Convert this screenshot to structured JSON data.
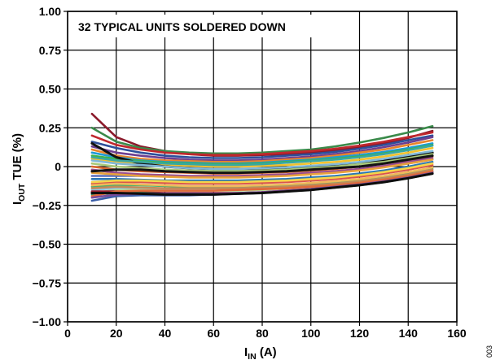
{
  "chart_data": {
    "type": "line",
    "annotation": "32 TYPICAL UNITS SOLDERED DOWN",
    "xlabel": {
      "main": "I",
      "sub": "IN",
      "unit": " (A)"
    },
    "ylabel": {
      "main": "I",
      "sub": "OUT",
      "rest": " TUE (%)"
    },
    "figure_id": "003",
    "xlim": [
      0,
      160
    ],
    "ylim": [
      -1.0,
      1.0
    ],
    "grid": true,
    "xticks": [
      0,
      20,
      40,
      60,
      80,
      100,
      120,
      140,
      160
    ],
    "xtick_labels": [
      "0",
      "20",
      "40",
      "60",
      "80",
      "100",
      "120",
      "140",
      "160"
    ],
    "yticks": [
      1.0,
      0.75,
      0.5,
      0.25,
      0,
      -0.25,
      -0.5,
      -0.75,
      -1.0
    ],
    "ytick_labels": [
      "1.00",
      "0.75",
      "0.50",
      "0.25",
      "0",
      "−0.25",
      "−0.50",
      "−0.75",
      "−1.00"
    ],
    "x": [
      10,
      20,
      30,
      40,
      50,
      60,
      70,
      80,
      90,
      100,
      110,
      120,
      130,
      140,
      150
    ],
    "series": [
      {
        "color": "#8b1a2b",
        "values": [
          0.34,
          0.19,
          0.13,
          0.1,
          0.08,
          0.07,
          0.07,
          0.075,
          0.08,
          0.09,
          0.105,
          0.125,
          0.15,
          0.185,
          0.23
        ]
      },
      {
        "color": "#3a8a4a",
        "values": [
          0.25,
          0.16,
          0.12,
          0.1,
          0.09,
          0.085,
          0.085,
          0.09,
          0.1,
          0.11,
          0.13,
          0.155,
          0.185,
          0.22,
          0.26
        ]
      },
      {
        "color": "#c0272d",
        "values": [
          0.2,
          0.14,
          0.11,
          0.09,
          0.08,
          0.075,
          0.075,
          0.08,
          0.09,
          0.1,
          0.115,
          0.135,
          0.16,
          0.19,
          0.22
        ]
      },
      {
        "color": "#2e4f9a",
        "values": [
          0.16,
          0.12,
          0.09,
          0.07,
          0.06,
          0.055,
          0.055,
          0.06,
          0.07,
          0.08,
          0.095,
          0.115,
          0.14,
          0.17,
          0.2
        ]
      },
      {
        "color": "#6d3f91",
        "values": [
          0.13,
          0.09,
          0.07,
          0.055,
          0.045,
          0.04,
          0.04,
          0.045,
          0.055,
          0.065,
          0.08,
          0.1,
          0.125,
          0.155,
          0.19
        ]
      },
      {
        "color": "#e8852b",
        "values": [
          0.11,
          0.07,
          0.05,
          0.04,
          0.035,
          0.03,
          0.03,
          0.035,
          0.045,
          0.055,
          0.07,
          0.09,
          0.11,
          0.14,
          0.17
        ]
      },
      {
        "color": "#1f9ad6",
        "values": [
          0.09,
          0.06,
          0.04,
          0.03,
          0.025,
          0.02,
          0.02,
          0.025,
          0.035,
          0.045,
          0.06,
          0.075,
          0.095,
          0.12,
          0.15
        ]
      },
      {
        "color": "#3cb54a",
        "values": [
          0.07,
          0.05,
          0.035,
          0.025,
          0.02,
          0.015,
          0.015,
          0.02,
          0.03,
          0.04,
          0.05,
          0.065,
          0.085,
          0.11,
          0.14
        ]
      },
      {
        "color": "#f2c12e",
        "values": [
          0.05,
          0.03,
          0.02,
          0.01,
          0.005,
          0.0,
          0.0,
          0.005,
          0.01,
          0.02,
          0.03,
          0.045,
          0.065,
          0.09,
          0.12
        ]
      },
      {
        "color": "#111111",
        "values": [
          0.15,
          0.06,
          0.02,
          0.0,
          -0.01,
          -0.015,
          -0.015,
          -0.015,
          -0.01,
          -0.005,
          0.005,
          0.02,
          0.04,
          0.065,
          0.09
        ]
      },
      {
        "color": "#7fb7d8",
        "values": [
          0.04,
          0.02,
          0.01,
          0.0,
          -0.01,
          -0.015,
          -0.015,
          -0.01,
          -0.005,
          0.005,
          0.015,
          0.03,
          0.05,
          0.075,
          0.1
        ]
      },
      {
        "color": "#a8c97a",
        "values": [
          0.02,
          0.0,
          -0.01,
          -0.02,
          -0.025,
          -0.03,
          -0.03,
          -0.025,
          -0.02,
          -0.01,
          0.0,
          0.015,
          0.03,
          0.055,
          0.08
        ]
      },
      {
        "color": "#d8642a",
        "values": [
          0.0,
          -0.02,
          -0.03,
          -0.035,
          -0.04,
          -0.045,
          -0.045,
          -0.04,
          -0.035,
          -0.025,
          -0.015,
          0.0,
          0.02,
          0.04,
          0.065
        ]
      },
      {
        "color": "#5a6dbb",
        "values": [
          -0.06,
          -0.06,
          -0.06,
          -0.06,
          -0.065,
          -0.065,
          -0.065,
          -0.06,
          -0.055,
          -0.045,
          -0.035,
          -0.02,
          0.0,
          0.02,
          0.045
        ]
      },
      {
        "color": "#9b4d8f",
        "values": [
          -0.02,
          -0.04,
          -0.05,
          -0.055,
          -0.06,
          -0.06,
          -0.06,
          -0.055,
          -0.05,
          -0.04,
          -0.03,
          -0.015,
          0.005,
          0.03,
          0.055
        ]
      },
      {
        "color": "#e9a23b",
        "values": [
          -0.04,
          -0.05,
          -0.06,
          -0.065,
          -0.07,
          -0.07,
          -0.07,
          -0.065,
          -0.06,
          -0.05,
          -0.04,
          -0.025,
          -0.005,
          0.02,
          0.045
        ]
      },
      {
        "color": "#141414",
        "values": [
          -0.03,
          -0.02,
          -0.02,
          -0.03,
          -0.035,
          -0.04,
          -0.04,
          -0.035,
          -0.03,
          -0.02,
          -0.01,
          0.0,
          0.02,
          0.045,
          0.07
        ]
      },
      {
        "color": "#2b77b5",
        "values": [
          -0.08,
          -0.08,
          -0.085,
          -0.09,
          -0.09,
          -0.09,
          -0.09,
          -0.085,
          -0.08,
          -0.07,
          -0.06,
          -0.045,
          -0.025,
          0.0,
          0.03
        ]
      },
      {
        "color": "#d9544f",
        "values": [
          -0.11,
          -0.1,
          -0.1,
          -0.105,
          -0.11,
          -0.11,
          -0.11,
          -0.105,
          -0.1,
          -0.09,
          -0.08,
          -0.065,
          -0.045,
          -0.02,
          0.01
        ]
      },
      {
        "color": "#4caf6d",
        "values": [
          -0.13,
          -0.12,
          -0.12,
          -0.125,
          -0.13,
          -0.13,
          -0.13,
          -0.125,
          -0.12,
          -0.11,
          -0.1,
          -0.085,
          -0.065,
          -0.04,
          -0.01
        ]
      },
      {
        "color": "#f0b85a",
        "values": [
          -0.12,
          -0.11,
          -0.115,
          -0.12,
          -0.125,
          -0.125,
          -0.125,
          -0.12,
          -0.115,
          -0.105,
          -0.095,
          -0.08,
          -0.06,
          -0.035,
          -0.005
        ]
      },
      {
        "color": "#8ec3e6",
        "values": [
          -0.15,
          -0.14,
          -0.14,
          -0.145,
          -0.15,
          -0.15,
          -0.15,
          -0.145,
          -0.14,
          -0.13,
          -0.12,
          -0.105,
          -0.085,
          -0.06,
          -0.03
        ]
      },
      {
        "color": "#b4d89a",
        "values": [
          -0.17,
          -0.15,
          -0.15,
          -0.155,
          -0.155,
          -0.155,
          -0.155,
          -0.15,
          -0.145,
          -0.135,
          -0.125,
          -0.11,
          -0.09,
          -0.065,
          -0.035
        ]
      },
      {
        "color": "#c08a5a",
        "values": [
          -0.14,
          -0.13,
          -0.135,
          -0.14,
          -0.14,
          -0.14,
          -0.14,
          -0.135,
          -0.13,
          -0.12,
          -0.11,
          -0.095,
          -0.075,
          -0.05,
          -0.02
        ]
      },
      {
        "color": "#9a1f2f",
        "values": [
          -0.16,
          -0.16,
          -0.165,
          -0.17,
          -0.17,
          -0.17,
          -0.17,
          -0.165,
          -0.155,
          -0.145,
          -0.13,
          -0.115,
          -0.095,
          -0.07,
          -0.04
        ]
      },
      {
        "color": "#2d8a52",
        "values": [
          -0.18,
          -0.17,
          -0.17,
          -0.175,
          -0.175,
          -0.175,
          -0.175,
          -0.17,
          -0.16,
          -0.15,
          -0.135,
          -0.12,
          -0.1,
          -0.075,
          -0.045
        ]
      },
      {
        "color": "#3b5fa8",
        "values": [
          -0.22,
          -0.19,
          -0.185,
          -0.185,
          -0.185,
          -0.18,
          -0.175,
          -0.17,
          -0.16,
          -0.145,
          -0.13,
          -0.11,
          -0.09,
          -0.065,
          -0.035
        ]
      },
      {
        "color": "#e06a3a",
        "values": [
          -0.19,
          -0.16,
          -0.155,
          -0.155,
          -0.155,
          -0.155,
          -0.15,
          -0.145,
          -0.14,
          -0.13,
          -0.12,
          -0.105,
          -0.085,
          -0.06,
          -0.03
        ]
      },
      {
        "color": "#7a4b9a",
        "values": [
          -0.2,
          -0.18,
          -0.175,
          -0.175,
          -0.175,
          -0.175,
          -0.17,
          -0.165,
          -0.155,
          -0.145,
          -0.13,
          -0.115,
          -0.095,
          -0.07,
          -0.04
        ]
      },
      {
        "color": "#f6d44a",
        "values": [
          -0.1,
          -0.09,
          -0.09,
          -0.095,
          -0.1,
          -0.1,
          -0.1,
          -0.095,
          -0.09,
          -0.08,
          -0.07,
          -0.055,
          -0.035,
          -0.01,
          0.02
        ]
      },
      {
        "color": "#3aa7a0",
        "values": [
          0.06,
          0.04,
          0.03,
          0.02,
          0.015,
          0.01,
          0.01,
          0.015,
          0.025,
          0.035,
          0.045,
          0.06,
          0.08,
          0.105,
          0.135
        ]
      },
      {
        "color": "#0d0d0d",
        "values": [
          -0.17,
          -0.17,
          -0.175,
          -0.18,
          -0.18,
          -0.18,
          -0.175,
          -0.17,
          -0.16,
          -0.15,
          -0.135,
          -0.12,
          -0.1,
          -0.075,
          -0.045
        ]
      }
    ]
  }
}
